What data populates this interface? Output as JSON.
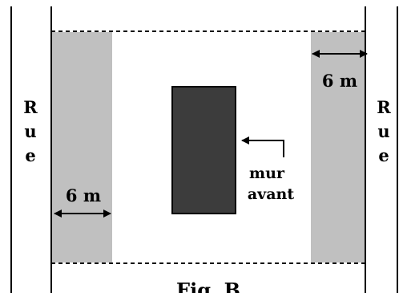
{
  "street_left": [
    "R",
    "u",
    "e"
  ],
  "street_right": [
    "R",
    "u",
    "e"
  ],
  "setback_left": "6 m",
  "setback_right": "6 m",
  "front_wall_label": [
    "mur",
    "avant"
  ],
  "figure_caption": "Fig. B",
  "colors": {
    "setback_strip": "#c0c0c0",
    "building": "#3c3c3c",
    "lines": "#000000",
    "background": "#ffffff"
  }
}
